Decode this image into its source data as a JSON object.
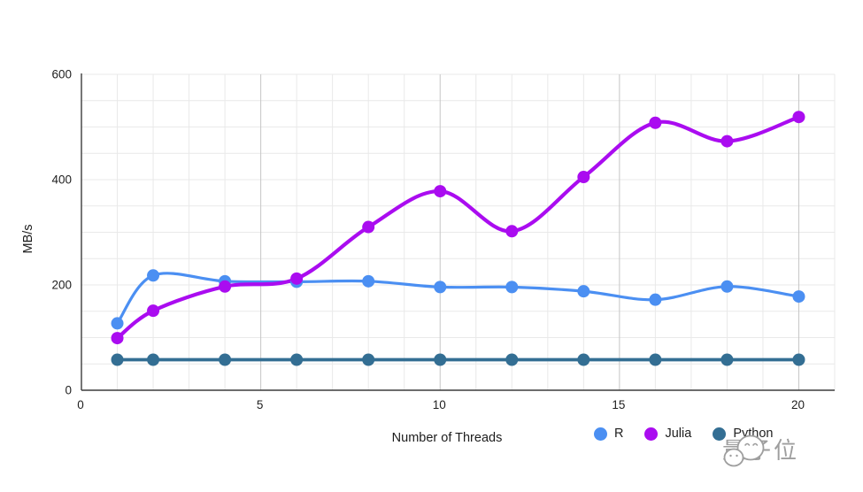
{
  "chart_data": {
    "type": "line",
    "title": "",
    "xlabel": "Number of Threads",
    "ylabel": "MB/s",
    "x": [
      1,
      2,
      4,
      6,
      8,
      10,
      12,
      14,
      16,
      18,
      20
    ],
    "series": [
      {
        "name": "R",
        "color": "#4b8ff2",
        "values": [
          127,
          218,
          207,
          206,
          207,
          196,
          196,
          188,
          172,
          197,
          178
        ]
      },
      {
        "name": "Julia",
        "color": "#aa0cf0",
        "values": [
          99,
          151,
          197,
          212,
          310,
          378,
          302,
          405,
          508,
          473,
          519
        ]
      },
      {
        "name": "Python",
        "color": "#336e93",
        "values": [
          58,
          58,
          58,
          58,
          58,
          58,
          58,
          58,
          58,
          58,
          58
        ]
      }
    ],
    "xlim": [
      0,
      21
    ],
    "ylim": [
      0,
      600
    ],
    "x_ticks": [
      0,
      5,
      10,
      15,
      20
    ],
    "y_ticks": [
      0,
      200,
      400,
      600
    ],
    "x_minor_step": 1,
    "y_minor_step": 50,
    "smooth": true,
    "grid": true,
    "legend_position": "bottom-right",
    "colors": {
      "grid_minor": "#e9e9e9",
      "grid_major": "#c6c6c6",
      "axis": "#3c3c3c",
      "tick_text": "#1f1f1f"
    }
  },
  "watermark": {
    "text": "量子位",
    "icon": "chat-bubbles-icon",
    "color": "#9e9e9e"
  }
}
